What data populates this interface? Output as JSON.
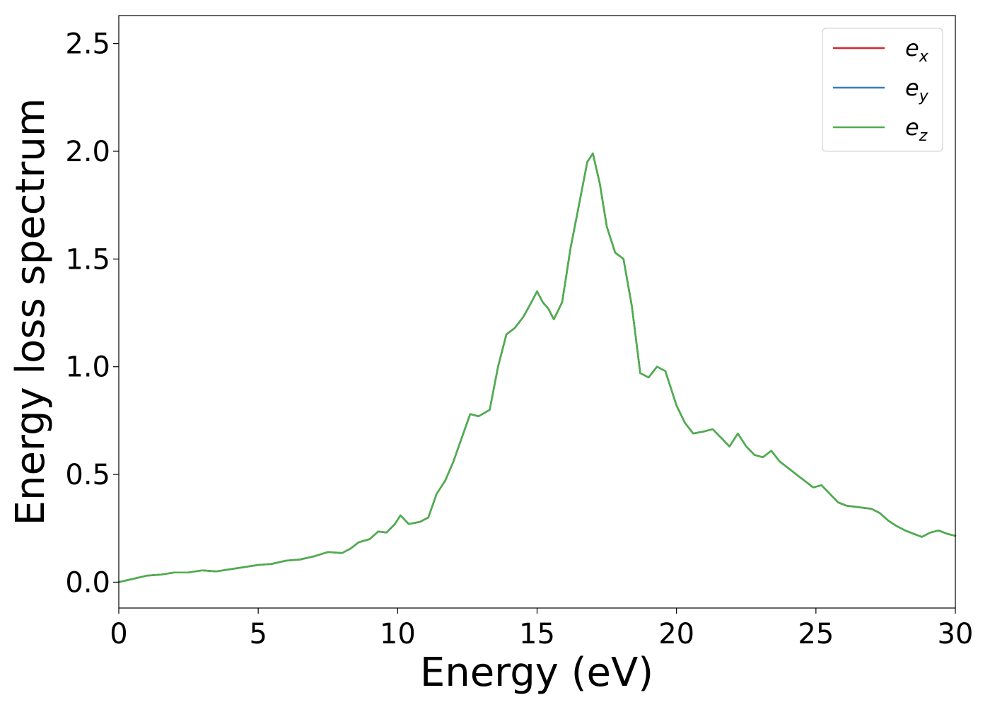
{
  "chart_data": {
    "type": "line",
    "title": "",
    "xlabel": "Energy (eV)",
    "ylabel": "Energy loss spectrum",
    "xlim": [
      0,
      30
    ],
    "ylim": [
      -0.12,
      2.63
    ],
    "xticks": [
      "0",
      "5",
      "10",
      "15",
      "20",
      "25",
      "30"
    ],
    "yticks": [
      "0.0",
      "0.5",
      "1.0",
      "1.5",
      "2.0",
      "2.5"
    ],
    "grid": false,
    "legend_position": "top-right",
    "x": [
      0,
      0.5,
      1,
      1.5,
      2,
      2.5,
      3,
      3.5,
      4,
      4.5,
      5,
      5.5,
      6,
      6.5,
      7,
      7.5,
      8,
      8.3,
      8.6,
      9,
      9.3,
      9.6,
      9.9,
      10.1,
      10.4,
      10.8,
      11.1,
      11.4,
      11.7,
      12,
      12.3,
      12.6,
      12.9,
      13.3,
      13.6,
      13.9,
      14.2,
      14.5,
      14.8,
      15.0,
      15.2,
      15.4,
      15.6,
      15.9,
      16.2,
      16.5,
      16.8,
      17.0,
      17.25,
      17.5,
      17.8,
      18.1,
      18.4,
      18.7,
      19.0,
      19.3,
      19.6,
      20.0,
      20.3,
      20.6,
      21.0,
      21.3,
      21.6,
      21.9,
      22.2,
      22.5,
      22.8,
      23.1,
      23.4,
      23.7,
      24.0,
      24.3,
      24.6,
      24.9,
      25.2,
      25.5,
      25.8,
      26.1,
      26.4,
      26.7,
      27.0,
      27.3,
      27.6,
      27.9,
      28.2,
      28.5,
      28.8,
      29.1,
      29.4,
      29.7,
      30.0
    ],
    "series": [
      {
        "name": "e_x",
        "color": "#d62728",
        "values": [
          0.0,
          0.015,
          0.03,
          0.035,
          0.045,
          0.045,
          0.055,
          0.05,
          0.06,
          0.07,
          0.08,
          0.085,
          0.1,
          0.105,
          0.12,
          0.14,
          0.135,
          0.155,
          0.185,
          0.2,
          0.235,
          0.23,
          0.27,
          0.31,
          0.27,
          0.28,
          0.3,
          0.41,
          0.47,
          0.56,
          0.67,
          0.78,
          0.77,
          0.8,
          1.0,
          1.15,
          1.18,
          1.23,
          1.3,
          1.35,
          1.3,
          1.27,
          1.22,
          1.3,
          1.55,
          1.75,
          1.95,
          1.99,
          1.85,
          1.65,
          1.53,
          1.5,
          1.28,
          0.97,
          0.95,
          1.0,
          0.98,
          0.82,
          0.74,
          0.69,
          0.7,
          0.71,
          0.67,
          0.63,
          0.69,
          0.63,
          0.59,
          0.58,
          0.61,
          0.56,
          0.53,
          0.5,
          0.47,
          0.44,
          0.45,
          0.41,
          0.37,
          0.355,
          0.35,
          0.345,
          0.34,
          0.32,
          0.285,
          0.26,
          0.24,
          0.225,
          0.21,
          0.23,
          0.24,
          0.225,
          0.215
        ]
      },
      {
        "name": "e_y",
        "color": "#377eb8",
        "values": [
          0.0,
          0.015,
          0.03,
          0.035,
          0.045,
          0.045,
          0.055,
          0.05,
          0.06,
          0.07,
          0.08,
          0.085,
          0.1,
          0.105,
          0.12,
          0.14,
          0.135,
          0.155,
          0.185,
          0.2,
          0.235,
          0.23,
          0.27,
          0.31,
          0.27,
          0.28,
          0.3,
          0.41,
          0.47,
          0.56,
          0.67,
          0.78,
          0.77,
          0.8,
          1.0,
          1.15,
          1.18,
          1.23,
          1.3,
          1.35,
          1.3,
          1.27,
          1.22,
          1.3,
          1.55,
          1.75,
          1.95,
          1.99,
          1.85,
          1.65,
          1.53,
          1.5,
          1.28,
          0.97,
          0.95,
          1.0,
          0.98,
          0.82,
          0.74,
          0.69,
          0.7,
          0.71,
          0.67,
          0.63,
          0.69,
          0.63,
          0.59,
          0.58,
          0.61,
          0.56,
          0.53,
          0.5,
          0.47,
          0.44,
          0.45,
          0.41,
          0.37,
          0.355,
          0.35,
          0.345,
          0.34,
          0.32,
          0.285,
          0.26,
          0.24,
          0.225,
          0.21,
          0.23,
          0.24,
          0.225,
          0.215
        ]
      },
      {
        "name": "e_z",
        "color": "#4daf4a",
        "values": [
          0.0,
          0.015,
          0.03,
          0.035,
          0.045,
          0.045,
          0.055,
          0.05,
          0.06,
          0.07,
          0.08,
          0.085,
          0.1,
          0.105,
          0.12,
          0.14,
          0.135,
          0.155,
          0.185,
          0.2,
          0.235,
          0.23,
          0.27,
          0.31,
          0.27,
          0.28,
          0.3,
          0.41,
          0.47,
          0.56,
          0.67,
          0.78,
          0.77,
          0.8,
          1.0,
          1.15,
          1.18,
          1.23,
          1.3,
          1.35,
          1.3,
          1.27,
          1.22,
          1.3,
          1.55,
          1.75,
          1.95,
          1.99,
          1.85,
          1.65,
          1.53,
          1.5,
          1.28,
          0.97,
          0.95,
          1.0,
          0.98,
          0.82,
          0.74,
          0.69,
          0.7,
          0.71,
          0.67,
          0.63,
          0.69,
          0.63,
          0.59,
          0.58,
          0.61,
          0.56,
          0.53,
          0.5,
          0.47,
          0.44,
          0.45,
          0.41,
          0.37,
          0.355,
          0.35,
          0.345,
          0.34,
          0.32,
          0.285,
          0.26,
          0.24,
          0.225,
          0.21,
          0.23,
          0.24,
          0.225,
          0.215
        ]
      }
    ],
    "legend": [
      {
        "base": "e",
        "sub": "x",
        "color": "#d62728"
      },
      {
        "base": "e",
        "sub": "y",
        "color": "#377eb8"
      },
      {
        "base": "e",
        "sub": "z",
        "color": "#4daf4a"
      }
    ]
  }
}
